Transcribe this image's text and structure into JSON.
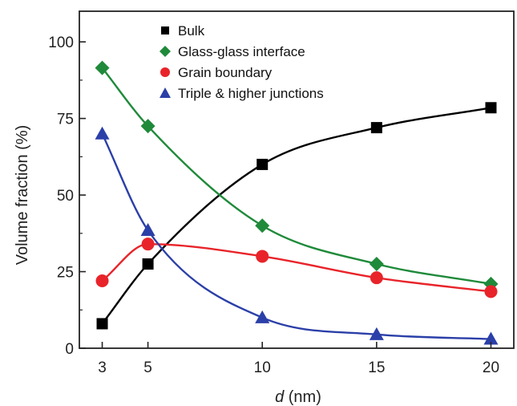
{
  "chart_data": {
    "type": "line",
    "xlabel_italic": "d",
    "xlabel_unit": " (nm)",
    "ylabel": "Volume fraction (%)",
    "xlim": [
      2,
      21
    ],
    "ylim": [
      0,
      110
    ],
    "xticks": [
      3,
      5,
      10,
      15,
      20
    ],
    "yticks": [
      0,
      25,
      50,
      75,
      100
    ],
    "legend_position": "top-center",
    "grid": false,
    "series": [
      {
        "name": "Bulk",
        "marker": "square",
        "color": "#000000",
        "x": [
          3,
          5,
          10,
          15,
          20
        ],
        "values": [
          8,
          27.5,
          60,
          72,
          78.5
        ]
      },
      {
        "name": "Glass-glass interface",
        "marker": "diamond",
        "color": "#1f8a3a",
        "x": [
          3,
          5,
          10,
          15,
          20
        ],
        "values": [
          91.5,
          72.5,
          40,
          27.5,
          21
        ]
      },
      {
        "name": "Grain boundary",
        "marker": "circle",
        "color": "#e8242a",
        "x": [
          3,
          5,
          10,
          15,
          20
        ],
        "values": [
          22,
          34,
          30,
          23,
          18.5
        ]
      },
      {
        "name": "Triple & higher junctions",
        "marker": "triangle",
        "color": "#2b3fa8",
        "x": [
          3,
          5,
          10,
          15,
          20
        ],
        "values": [
          70,
          38.5,
          10,
          4.5,
          3
        ]
      }
    ]
  }
}
